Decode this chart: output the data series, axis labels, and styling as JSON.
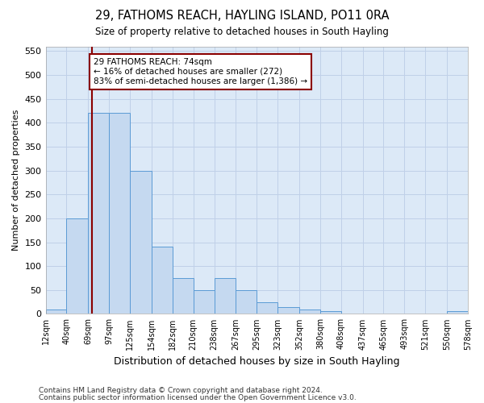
{
  "title": "29, FATHOMS REACH, HAYLING ISLAND, PO11 0RA",
  "subtitle": "Size of property relative to detached houses in South Hayling",
  "xlabel": "Distribution of detached houses by size in South Hayling",
  "ylabel": "Number of detached properties",
  "footnote1": "Contains HM Land Registry data © Crown copyright and database right 2024.",
  "footnote2": "Contains public sector information licensed under the Open Government Licence v3.0.",
  "annotation_line1": "29 FATHOMS REACH: 74sqm",
  "annotation_line2": "← 16% of detached houses are smaller (272)",
  "annotation_line3": "83% of semi-detached houses are larger (1,386) →",
  "property_size": 74,
  "bar_edges": [
    12,
    40,
    69,
    97,
    125,
    154,
    182,
    210,
    238,
    267,
    295,
    323,
    352,
    380,
    408,
    437,
    465,
    493,
    521,
    550,
    578
  ],
  "bar_heights": [
    10,
    200,
    420,
    420,
    300,
    140,
    75,
    50,
    75,
    50,
    25,
    15,
    10,
    5,
    0,
    0,
    0,
    0,
    0,
    5
  ],
  "bar_color": "#c5d9f0",
  "bar_edge_color": "#5b9bd5",
  "vline_color": "#8b0000",
  "annotation_box_color": "#8b0000",
  "bg_color": "#dce9f7",
  "ylim": [
    0,
    560
  ],
  "yticks": [
    0,
    50,
    100,
    150,
    200,
    250,
    300,
    350,
    400,
    450,
    500,
    550
  ],
  "figwidth": 6.0,
  "figheight": 5.0,
  "dpi": 100
}
